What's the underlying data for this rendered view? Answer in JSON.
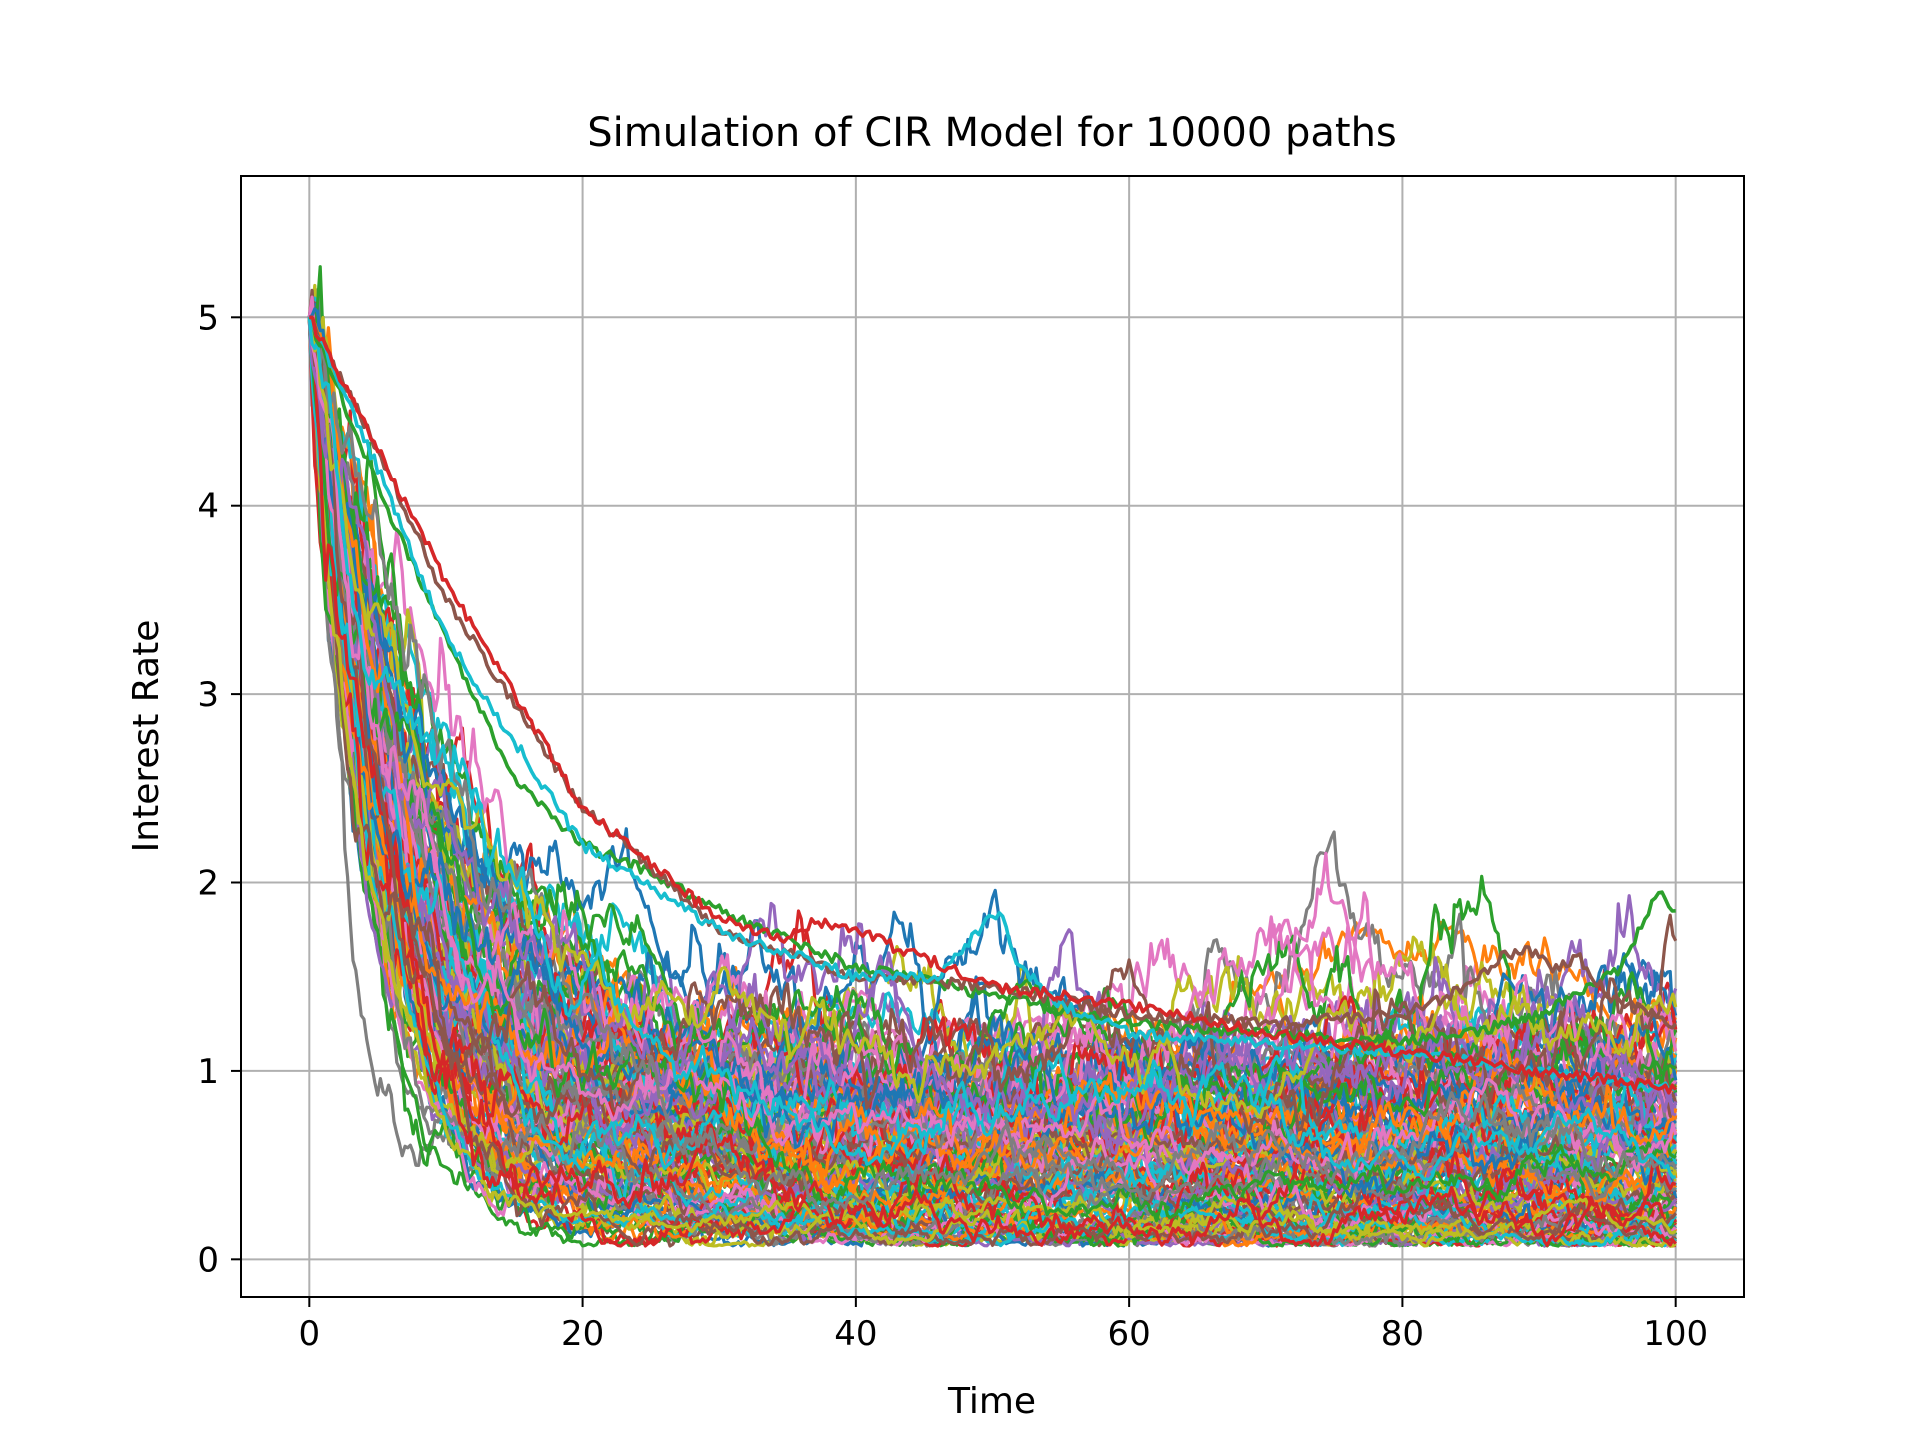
{
  "chart_data": {
    "type": "line",
    "title": "Simulation of CIR Model for 10000 paths",
    "xlabel": "Time",
    "ylabel": "Interest Rate",
    "xlim": [
      -5,
      105
    ],
    "ylim": [
      -0.2,
      5.75
    ],
    "xticks": [
      0,
      20,
      40,
      60,
      80,
      100
    ],
    "yticks": [
      0,
      1,
      2,
      3,
      4,
      5
    ],
    "xtick_labels": [
      "0",
      "20",
      "40",
      "60",
      "80",
      "100"
    ],
    "ytick_labels": [
      "0",
      "1",
      "2",
      "3",
      "4",
      "5"
    ],
    "grid": true,
    "legend": "none",
    "series_count_shown": 10000,
    "initial_value": 5.0,
    "x_range": [
      0,
      100
    ],
    "long_run_level_approx": 0.6,
    "final_value_range_approx": [
      0.08,
      1.9
    ],
    "colors": [
      "#1f77b4",
      "#ff7f0e",
      "#2ca02c",
      "#d62728",
      "#9467bd",
      "#8c564b",
      "#e377c2",
      "#7f7f7f",
      "#bcbd22",
      "#17becf"
    ],
    "notable_paths": [
      {
        "color": "#2ca02c",
        "x": [
          0,
          5,
          10,
          15,
          20,
          25,
          30,
          35,
          40,
          50,
          60,
          70,
          80,
          85,
          90,
          94,
          96,
          98,
          99,
          100
        ],
        "y": [
          5.0,
          4.1,
          3.3,
          2.55,
          2.2,
          2.05,
          1.85,
          1.7,
          1.55,
          1.4,
          1.25,
          1.2,
          1.15,
          1.2,
          1.3,
          1.45,
          1.55,
          1.85,
          1.95,
          1.85
        ]
      },
      {
        "color": "#8c564b",
        "x": [
          0,
          5,
          10,
          20,
          30,
          40,
          50,
          60,
          70,
          80,
          85,
          87,
          89,
          91,
          93,
          95,
          100
        ],
        "y": [
          5.0,
          4.3,
          3.5,
          2.4,
          1.75,
          1.5,
          1.45,
          1.3,
          1.25,
          1.3,
          1.45,
          1.6,
          1.65,
          1.55,
          1.6,
          1.4,
          1.25
        ]
      },
      {
        "color": "#17becf",
        "x": [
          0,
          5,
          10,
          20,
          30,
          40,
          46,
          49,
          50.5,
          52,
          55,
          60,
          80,
          100
        ],
        "y": [
          5.0,
          4.2,
          3.3,
          2.2,
          1.75,
          1.5,
          1.5,
          1.75,
          1.85,
          1.55,
          1.35,
          1.2,
          1.1,
          0.9
        ]
      },
      {
        "color": "#d62728",
        "x": [
          0,
          5,
          10,
          20,
          30,
          35,
          37,
          40,
          43,
          45,
          50,
          60,
          70,
          100
        ],
        "y": [
          5.0,
          4.3,
          3.6,
          2.4,
          1.8,
          1.7,
          1.8,
          1.75,
          1.65,
          1.6,
          1.45,
          1.35,
          1.2,
          0.9
        ]
      }
    ]
  }
}
